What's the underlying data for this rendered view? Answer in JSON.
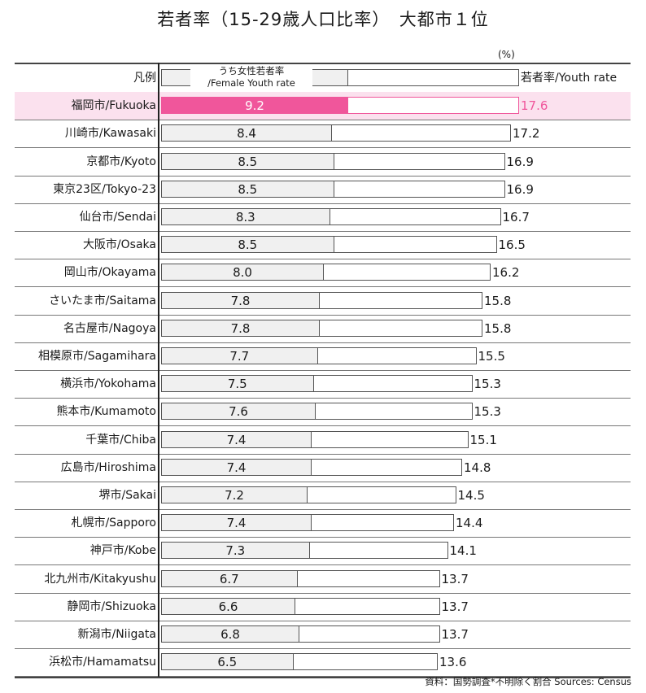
{
  "title": "若者率（15-29歳人口比率）　大都市１位",
  "unit": "(%)",
  "legend": {
    "label": "凡例",
    "female_line1": "うち女性若者率",
    "female_line2": "/Female Youth rate",
    "total_label": "若者率/Youth rate"
  },
  "source": "資料：国勢調査*不明除く割合  Sources: Census",
  "colors": {
    "highlight_bar": "#f0569b",
    "highlight_row": "#fbe1ee",
    "bar_fill": "#f0f0f0"
  },
  "chart_data": {
    "type": "bar",
    "orientation": "horizontal",
    "highlight": "福岡市/Fukuoka",
    "categories": [
      "福岡市/Fukuoka",
      "川崎市/Kawasaki",
      "京都市/Kyoto",
      "東京23区/Tokyo-23",
      "仙台市/Sendai",
      "大阪市/Osaka",
      "岡山市/Okayama",
      "さいたま市/Saitama",
      "名古屋市/Nagoya",
      "相模原市/Sagamihara",
      "横浜市/Yokohama",
      "熊本市/Kumamoto",
      "千葉市/Chiba",
      "広島市/Hiroshima",
      "堺市/Sakai",
      "札幌市/Sapporo",
      "神戸市/Kobe",
      "北九州市/Kitakyushu",
      "静岡市/Shizuoka",
      "新潟市/Niigata",
      "浜松市/Hamamatsu"
    ],
    "series": [
      {
        "name": "うち女性若者率/Female Youth rate",
        "values": [
          9.2,
          8.4,
          8.5,
          8.5,
          8.3,
          8.5,
          8.0,
          7.8,
          7.8,
          7.7,
          7.5,
          7.6,
          7.4,
          7.4,
          7.2,
          7.4,
          7.3,
          6.7,
          6.6,
          6.8,
          6.5
        ]
      },
      {
        "name": "若者率/Youth rate",
        "values": [
          17.6,
          17.2,
          16.9,
          16.9,
          16.7,
          16.5,
          16.2,
          15.8,
          15.8,
          15.5,
          15.3,
          15.3,
          15.1,
          14.8,
          14.5,
          14.4,
          14.1,
          13.7,
          13.7,
          13.7,
          13.6
        ]
      }
    ],
    "legend_demo": {
      "female": 9.2,
      "total": 17.6
    },
    "xlim": [
      0,
      17.6
    ]
  }
}
